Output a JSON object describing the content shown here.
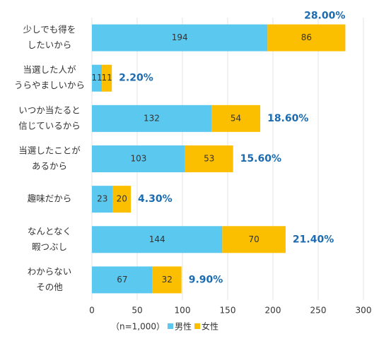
{
  "chart_data": {
    "type": "stacked-barh",
    "categories": [
      [
        "少しでも得を",
        "したいから"
      ],
      [
        "当選した人が",
        "うらやましいから"
      ],
      [
        "いつか当たると",
        "信じているから"
      ],
      [
        "当選したことが",
        "あるから"
      ],
      [
        "趣味だから"
      ],
      [
        "なんとなく",
        "暇つぶし"
      ],
      [
        "わからない",
        "その他"
      ]
    ],
    "series": [
      {
        "name": "男性",
        "color": "#5bc8f0",
        "values": [
          194,
          11,
          132,
          103,
          23,
          144,
          67
        ]
      },
      {
        "name": "女性",
        "color": "#fbbf00",
        "values": [
          86,
          11,
          54,
          53,
          20,
          70,
          32
        ]
      }
    ],
    "percent_labels": [
      "28.00%",
      "2.20%",
      "18.60%",
      "15.60%",
      "4.30%",
      "21.40%",
      "9.90%"
    ],
    "note": "（n=1,000）",
    "xlim": [
      0,
      300
    ],
    "xticks": [
      0,
      50,
      100,
      150,
      200,
      250,
      300
    ],
    "grid": true
  }
}
